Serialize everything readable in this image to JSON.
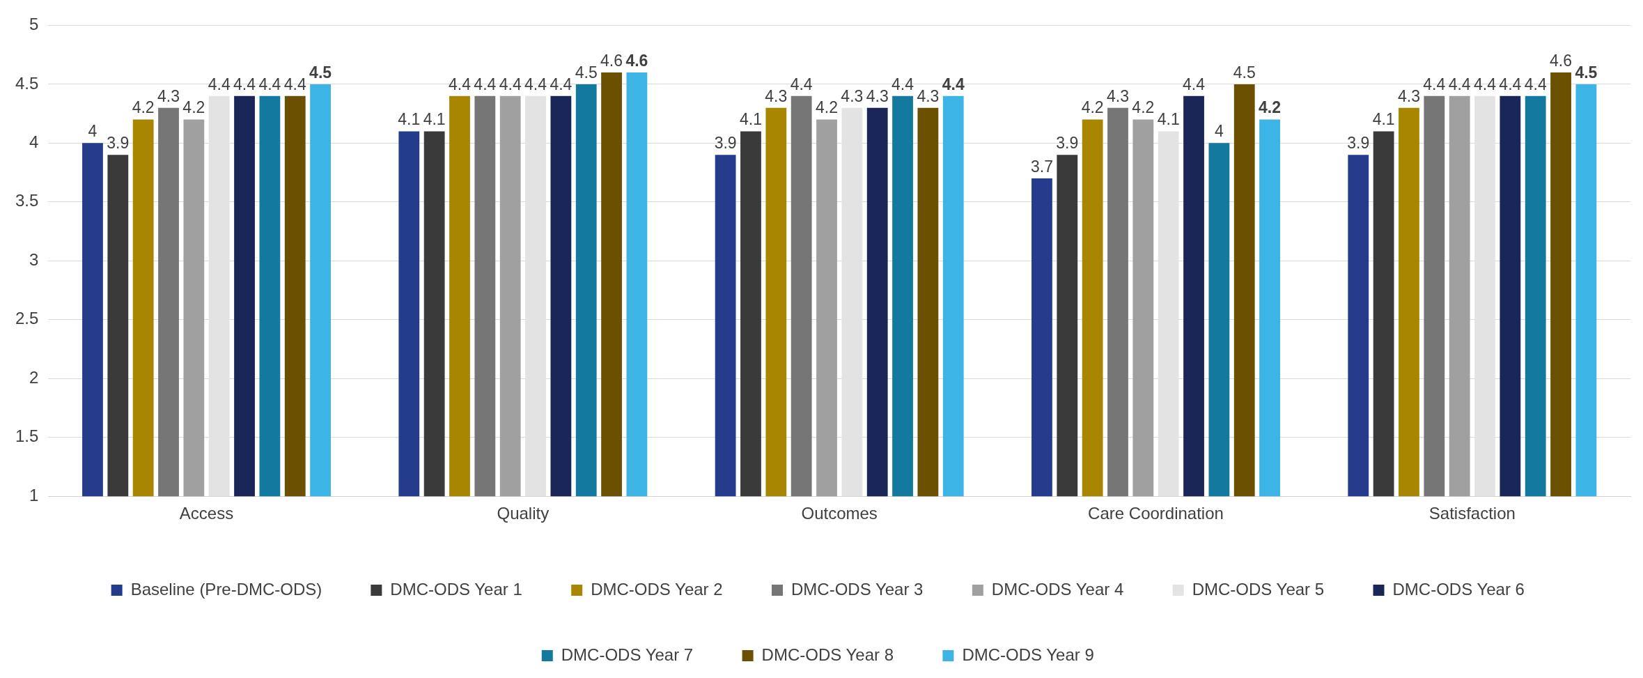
{
  "chart_data": {
    "type": "bar",
    "categories": [
      "Access",
      "Quality",
      "Outcomes",
      "Care Coordination",
      "Satisfaction"
    ],
    "series": [
      {
        "name": "Baseline (Pre-DMC-ODS)",
        "color": "#253c8c",
        "values": [
          4,
          4.1,
          3.9,
          3.7,
          3.9
        ]
      },
      {
        "name": "DMC-ODS Year 1",
        "color": "#3a3a3a",
        "values": [
          3.9,
          4.1,
          4.1,
          3.9,
          4.1
        ]
      },
      {
        "name": "DMC-ODS Year 2",
        "color": "#a88600",
        "values": [
          4.2,
          4.4,
          4.3,
          4.2,
          4.3
        ]
      },
      {
        "name": "DMC-ODS Year 3",
        "color": "#767676",
        "values": [
          4.3,
          4.4,
          4.4,
          4.3,
          4.4
        ]
      },
      {
        "name": "DMC-ODS Year 4",
        "color": "#a0a0a0",
        "values": [
          4.2,
          4.4,
          4.2,
          4.2,
          4.4
        ]
      },
      {
        "name": "DMC-ODS Year 5",
        "color": "#e3e3e3",
        "values": [
          4.4,
          4.4,
          4.3,
          4.1,
          4.4
        ]
      },
      {
        "name": "DMC-ODS Year 6",
        "color": "#1a2657",
        "values": [
          4.4,
          4.4,
          4.3,
          4.4,
          4.4
        ]
      },
      {
        "name": "DMC-ODS Year 7",
        "color": "#14799e",
        "values": [
          4.4,
          4.5,
          4.4,
          4,
          4.4
        ]
      },
      {
        "name": "DMC-ODS Year 8",
        "color": "#6a5000",
        "values": [
          4.4,
          4.6,
          4.3,
          4.5,
          4.6
        ]
      },
      {
        "name": "DMC-ODS Year 9",
        "color": "#3db4e6",
        "values": [
          4.5,
          4.6,
          4.4,
          4.2,
          4.5
        ]
      }
    ],
    "ylim": [
      1,
      5
    ],
    "yticks": [
      1,
      1.5,
      2,
      2.5,
      3,
      3.5,
      4,
      4.5,
      5
    ],
    "grid": "y",
    "legend": "bottom",
    "data_labels": true
  }
}
